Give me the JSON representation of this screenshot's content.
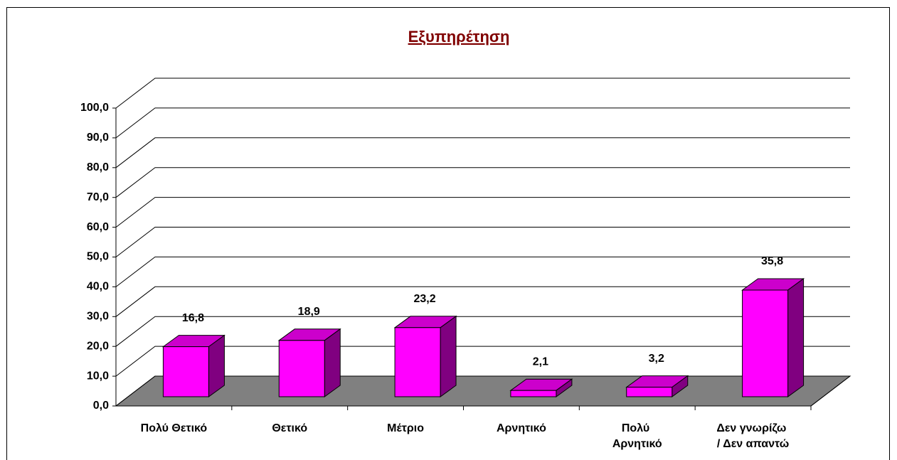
{
  "chart_data": {
    "type": "bar3d",
    "title": "Εξυπηρέτηση",
    "categories": [
      "Πολύ Θετικό",
      "Θετικό",
      "Μέτριο",
      "Αρνητικό",
      "Πολύ Αρνητικό",
      "Δεν γνωρίζω / Δεν απαντώ"
    ],
    "values": [
      16.8,
      18.9,
      23.2,
      2.1,
      3.2,
      35.8
    ],
    "value_labels": [
      "16,8",
      "18,9",
      "23,2",
      "2,1",
      "3,2",
      "35,8"
    ],
    "color": "#ff00ff",
    "side_color": "#800080",
    "top_color": "#cc00cc",
    "floor_color": "#808080",
    "ylim": [
      0,
      100
    ],
    "yticks": [
      {
        "value": 0,
        "label": "0,0"
      },
      {
        "value": 10,
        "label": "10,0"
      },
      {
        "value": 20,
        "label": "20,0"
      },
      {
        "value": 30,
        "label": "30,0"
      },
      {
        "value": 40,
        "label": "40,0"
      },
      {
        "value": 50,
        "label": "50,0"
      },
      {
        "value": 60,
        "label": "60,0"
      },
      {
        "value": 70,
        "label": "70,0"
      },
      {
        "value": 80,
        "label": "80,0"
      },
      {
        "value": 90,
        "label": "90,0"
      },
      {
        "value": 100,
        "label": "100,0"
      }
    ],
    "grid": true
  }
}
